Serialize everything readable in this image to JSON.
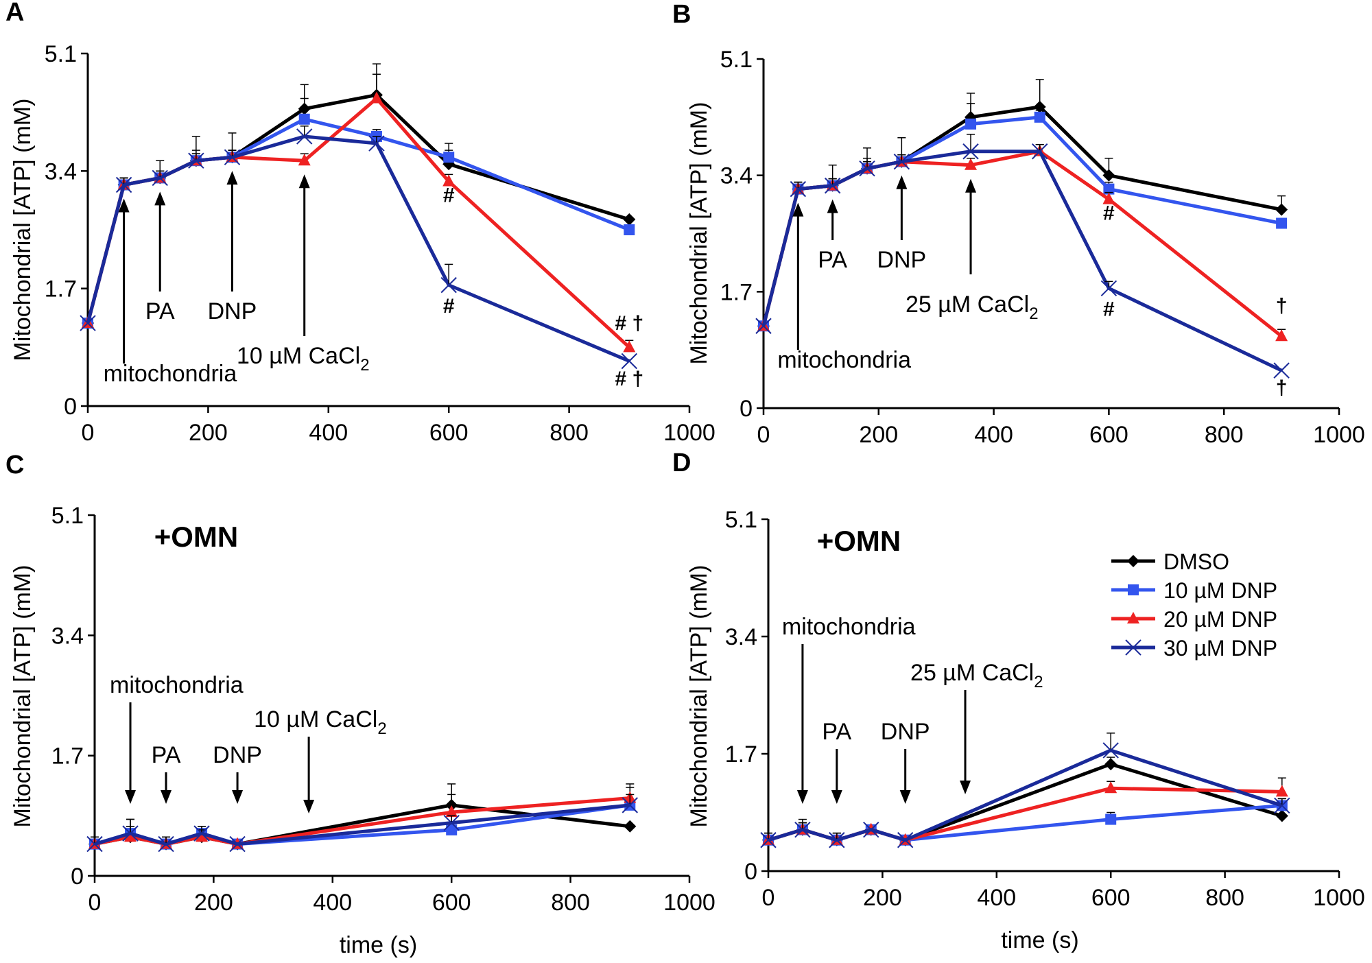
{
  "legend": [
    {
      "name": "DMSO",
      "color": "#000000",
      "marker": "diamond"
    },
    {
      "name": "10 µM DNP",
      "color": "#3355ee",
      "marker": "square"
    },
    {
      "name": "20 µM DNP",
      "color": "#ee2222",
      "marker": "triangle"
    },
    {
      "name": "30 µM DNP",
      "color": "#1a2a99",
      "marker": "x"
    }
  ],
  "chart_data": [
    {
      "type": "line",
      "panel": "A",
      "title": "",
      "xlabel": "",
      "ylabel": "Mitochondrial [ATP] (mM)",
      "xlim": [
        0,
        1000
      ],
      "ylim": [
        0,
        5.1
      ],
      "xticks": [
        "0",
        "200",
        "400",
        "600",
        "800",
        "1000"
      ],
      "yticks": [
        "0",
        "1.7",
        "3.4",
        "5.1"
      ],
      "x": [
        0,
        60,
        120,
        180,
        240,
        360,
        480,
        600,
        900
      ],
      "series": [
        {
          "name": "DMSO",
          "values": [
            1.2,
            3.2,
            3.3,
            3.55,
            3.6,
            4.3,
            4.5,
            3.5,
            2.7
          ],
          "errors": [
            0.05,
            0.1,
            0.25,
            0.35,
            0.35,
            0.35,
            0.45,
            0.3,
            0.05
          ]
        },
        {
          "name": "10 µM DNP",
          "values": [
            1.2,
            3.2,
            3.3,
            3.55,
            3.6,
            4.15,
            3.9,
            3.6,
            2.55
          ],
          "errors": [
            0.05,
            0.1,
            0.1,
            0.15,
            0.1,
            0.3,
            0.1,
            0.1,
            0.05
          ]
        },
        {
          "name": "20 µM DNP",
          "values": [
            1.2,
            3.2,
            3.3,
            3.55,
            3.6,
            3.55,
            4.45,
            3.25,
            0.85
          ],
          "errors": [
            0.05,
            0.1,
            0.1,
            0.1,
            0.1,
            0.1,
            0.35,
            0.1,
            0.1
          ]
        },
        {
          "name": "30 µM DNP",
          "values": [
            1.2,
            3.2,
            3.3,
            3.55,
            3.6,
            3.9,
            3.8,
            1.75,
            0.65
          ],
          "errors": [
            0.05,
            0.1,
            0.1,
            0.1,
            0.1,
            0.15,
            0.1,
            0.3,
            0.05
          ]
        }
      ],
      "annotations": [
        {
          "text": "mitochondria",
          "x": 60
        },
        {
          "text": "PA",
          "x": 120
        },
        {
          "text": "DNP",
          "x": 240
        },
        {
          "text": "10 µM CaCl",
          "sub": "2",
          "x": 360
        }
      ],
      "significance": [
        {
          "text": "#",
          "x": 600,
          "y": 2.95
        },
        {
          "text": "#",
          "x": 600,
          "y": 1.35
        },
        {
          "text": "# †",
          "x": 900,
          "y": 1.1
        },
        {
          "text": "# †",
          "x": 900,
          "y": 0.3
        }
      ]
    },
    {
      "type": "line",
      "panel": "B",
      "title": "",
      "xlabel": "",
      "ylabel": "Mitochondrial [ATP] (mM)",
      "xlim": [
        0,
        1000
      ],
      "ylim": [
        0,
        5.1
      ],
      "xticks": [
        "0",
        "200",
        "400",
        "600",
        "800",
        "1000"
      ],
      "yticks": [
        "0",
        "1.7",
        "3.4",
        "5.1"
      ],
      "x": [
        0,
        60,
        120,
        180,
        240,
        360,
        480,
        600,
        900
      ],
      "series": [
        {
          "name": "DMSO",
          "values": [
            1.2,
            3.2,
            3.25,
            3.5,
            3.6,
            4.25,
            4.4,
            3.4,
            2.9
          ],
          "errors": [
            0.05,
            0.1,
            0.3,
            0.3,
            0.35,
            0.35,
            0.4,
            0.25,
            0.2
          ]
        },
        {
          "name": "10 µM DNP",
          "values": [
            1.2,
            3.2,
            3.25,
            3.5,
            3.6,
            4.15,
            4.25,
            3.2,
            2.7
          ],
          "errors": [
            0.05,
            0.1,
            0.1,
            0.1,
            0.1,
            0.3,
            0.1,
            0.1,
            0.05
          ]
        },
        {
          "name": "20 µM DNP",
          "values": [
            1.2,
            3.2,
            3.25,
            3.5,
            3.6,
            3.55,
            3.75,
            3.05,
            1.05
          ],
          "errors": [
            0.05,
            0.1,
            0.1,
            0.1,
            0.1,
            0.1,
            0.1,
            0.1,
            0.1
          ]
        },
        {
          "name": "30 µM DNP",
          "values": [
            1.2,
            3.2,
            3.25,
            3.5,
            3.6,
            3.75,
            3.75,
            1.75,
            0.55
          ],
          "errors": [
            0.05,
            0.1,
            0.1,
            0.15,
            0.1,
            0.25,
            0.1,
            0.1,
            0.05
          ]
        }
      ],
      "annotations": [
        {
          "text": "mitochondria",
          "x": 60
        },
        {
          "text": "PA",
          "x": 120
        },
        {
          "text": "DNP",
          "x": 240
        },
        {
          "text": "25 µM CaCl",
          "sub": "2",
          "x": 360
        }
      ],
      "significance": [
        {
          "text": "#",
          "x": 600,
          "y": 2.75
        },
        {
          "text": "#",
          "x": 600,
          "y": 1.35
        },
        {
          "text": "†",
          "x": 900,
          "y": 1.4
        },
        {
          "text": "†",
          "x": 900,
          "y": 0.2
        }
      ]
    },
    {
      "type": "line",
      "panel": "C",
      "title": "+OMN",
      "xlabel": "time (s)",
      "ylabel": "Mitochondrial [ATP] (mM)",
      "xlim": [
        0,
        1000
      ],
      "ylim": [
        0,
        5.1
      ],
      "xticks": [
        "0",
        "200",
        "400",
        "600",
        "800",
        "1000"
      ],
      "yticks": [
        "0",
        "1.7",
        "3.4",
        "5.1"
      ],
      "x": [
        0,
        60,
        120,
        180,
        240,
        600,
        900
      ],
      "series": [
        {
          "name": "DMSO",
          "values": [
            0.45,
            0.55,
            0.45,
            0.55,
            0.45,
            1.0,
            0.7
          ],
          "errors": [
            0.1,
            0.15,
            0.1,
            0.1,
            0.05,
            0.3,
            0.05
          ]
        },
        {
          "name": "10 µM DNP",
          "values": [
            0.45,
            0.6,
            0.45,
            0.6,
            0.45,
            0.65,
            1.0
          ],
          "errors": [
            0.1,
            0.2,
            0.1,
            0.1,
            0.05,
            0.1,
            0.25
          ]
        },
        {
          "name": "20 µM DNP",
          "values": [
            0.45,
            0.55,
            0.45,
            0.55,
            0.45,
            0.9,
            1.1
          ],
          "errors": [
            0.1,
            0.15,
            0.1,
            0.1,
            0.05,
            0.25,
            0.2
          ]
        },
        {
          "name": "30 µM DNP",
          "values": [
            0.45,
            0.6,
            0.45,
            0.6,
            0.45,
            0.75,
            1.0
          ],
          "errors": [
            0.1,
            0.2,
            0.1,
            0.1,
            0.05,
            0.1,
            0.15
          ]
        }
      ],
      "annotations": [
        {
          "text": "mitochondria",
          "x": 60
        },
        {
          "text": "PA",
          "x": 120
        },
        {
          "text": "DNP",
          "x": 240
        },
        {
          "text": "10 µM CaCl",
          "sub": "2",
          "x": 360
        }
      ],
      "significance": []
    },
    {
      "type": "line",
      "panel": "D",
      "title": "+OMN",
      "xlabel": "time (s)",
      "ylabel": "Mitochondrial [ATP] (mM)",
      "xlim": [
        0,
        1000
      ],
      "ylim": [
        0,
        5.1
      ],
      "xticks": [
        "0",
        "200",
        "400",
        "600",
        "800",
        "1000"
      ],
      "yticks": [
        "0",
        "1.7",
        "3.4",
        "5.1"
      ],
      "x": [
        0,
        60,
        120,
        180,
        240,
        600,
        900
      ],
      "series": [
        {
          "name": "DMSO",
          "values": [
            0.45,
            0.6,
            0.45,
            0.6,
            0.45,
            1.55,
            0.8
          ],
          "errors": [
            0.1,
            0.1,
            0.1,
            0.05,
            0.05,
            0.1,
            0.05
          ]
        },
        {
          "name": "10 µM DNP",
          "values": [
            0.45,
            0.6,
            0.45,
            0.6,
            0.45,
            0.75,
            0.95
          ],
          "errors": [
            0.1,
            0.1,
            0.1,
            0.05,
            0.05,
            0.1,
            0.1
          ]
        },
        {
          "name": "20 µM DNP",
          "values": [
            0.45,
            0.6,
            0.45,
            0.6,
            0.45,
            1.2,
            1.15
          ],
          "errors": [
            0.1,
            0.1,
            0.1,
            0.05,
            0.05,
            0.1,
            0.2
          ]
        },
        {
          "name": "30 µM DNP",
          "values": [
            0.45,
            0.6,
            0.45,
            0.6,
            0.45,
            1.75,
            0.95
          ],
          "errors": [
            0.1,
            0.15,
            0.1,
            0.05,
            0.05,
            0.25,
            0.1
          ]
        }
      ],
      "annotations": [
        {
          "text": "mitochondria",
          "x": 60
        },
        {
          "text": "PA",
          "x": 120
        },
        {
          "text": "DNP",
          "x": 240
        },
        {
          "text": "25 µM CaCl",
          "sub": "2",
          "x": 345
        }
      ],
      "significance": []
    }
  ]
}
